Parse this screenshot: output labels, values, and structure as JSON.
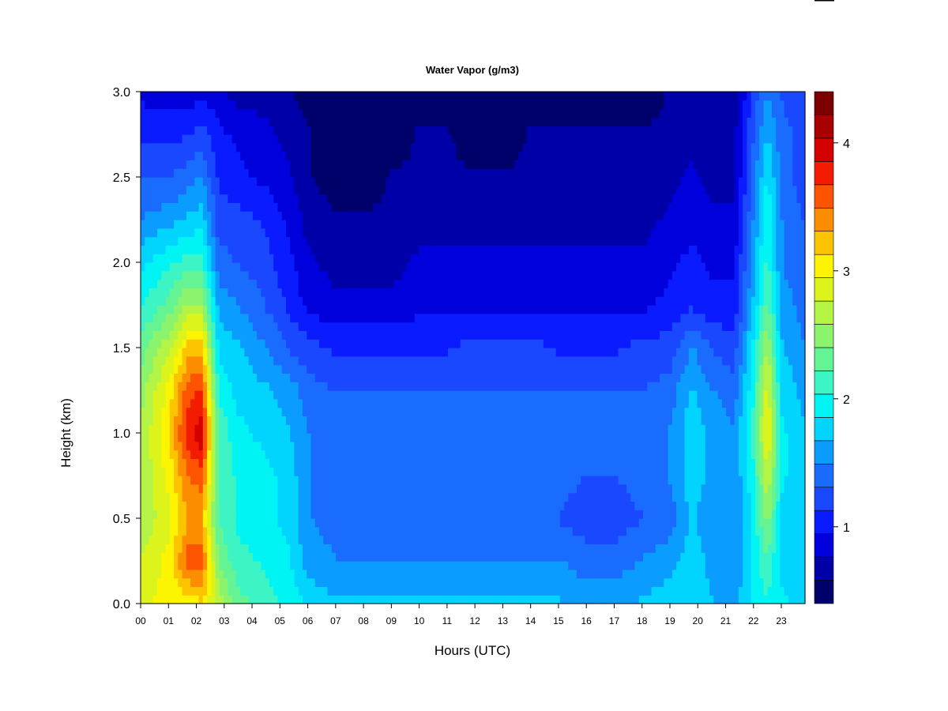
{
  "chart_data": {
    "type": "heatmap",
    "title": "Water Vapor (g/m3)",
    "xlabel": "Hours (UTC)",
    "ylabel": "Height (km)",
    "xlim": [
      0,
      23.85
    ],
    "ylim": [
      0,
      3.0
    ],
    "x_ticks": [
      "00",
      "01",
      "02",
      "03",
      "04",
      "05",
      "06",
      "07",
      "08",
      "09",
      "10",
      "11",
      "12",
      "13",
      "14",
      "15",
      "16",
      "17",
      "18",
      "19",
      "20",
      "21",
      "22",
      "23"
    ],
    "y_ticks": [
      "0.0",
      "0.5",
      "1.0",
      "1.5",
      "2.0",
      "2.5",
      "3.0"
    ],
    "colorbar": {
      "min": 0.4,
      "max": 4.4,
      "levels": 20,
      "ticks": [
        "1",
        "2",
        "3",
        "4"
      ],
      "colors": [
        "#00006a",
        "#0000a8",
        "#0000dc",
        "#0a1cff",
        "#1a48ff",
        "#1a6cff",
        "#0a9cff",
        "#00d4ff",
        "#00f4f4",
        "#3cf4c4",
        "#64f494",
        "#8cf46c",
        "#b4f444",
        "#dcf41c",
        "#fcf400",
        "#fcc400",
        "#fc8c00",
        "#fc5400",
        "#f41c00",
        "#d40000",
        "#a80000",
        "#7c0000"
      ]
    },
    "profile_heights_km": [
      0.0,
      0.25,
      0.5,
      0.75,
      1.0,
      1.25,
      1.5,
      1.75,
      2.0,
      2.25,
      2.5,
      2.75,
      3.0
    ],
    "profiles": [
      {
        "hour": 0.0,
        "values": [
          2.9,
          2.8,
          2.6,
          2.6,
          2.6,
          2.5,
          2.3,
          2.0,
          1.8,
          1.5,
          1.3,
          1.1,
          0.9
        ]
      },
      {
        "hour": 1.0,
        "values": [
          3.0,
          3.0,
          2.9,
          3.0,
          3.1,
          3.0,
          2.7,
          2.3,
          2.0,
          1.6,
          1.3,
          1.1,
          0.8
        ]
      },
      {
        "hour": 1.7,
        "values": [
          3.0,
          3.6,
          3.3,
          3.5,
          3.8,
          3.6,
          3.2,
          2.6,
          2.1,
          1.7,
          1.4,
          1.1,
          0.8
        ]
      },
      {
        "hour": 2.2,
        "values": [
          3.1,
          3.6,
          3.3,
          3.6,
          4.0,
          3.7,
          3.2,
          2.6,
          2.1,
          1.8,
          1.5,
          1.2,
          0.9
        ]
      },
      {
        "hour": 2.8,
        "values": [
          2.7,
          2.4,
          2.2,
          2.2,
          2.2,
          2.0,
          1.8,
          1.6,
          1.4,
          1.2,
          1.1,
          1.0,
          0.8
        ]
      },
      {
        "hour": 3.5,
        "values": [
          2.3,
          2.1,
          2.0,
          2.0,
          1.9,
          1.8,
          1.7,
          1.5,
          1.3,
          1.2,
          1.0,
          0.9,
          0.7
        ]
      },
      {
        "hour": 4.5,
        "values": [
          2.1,
          2.0,
          1.9,
          1.9,
          1.8,
          1.7,
          1.5,
          1.3,
          1.2,
          1.1,
          0.9,
          0.8,
          0.7
        ]
      },
      {
        "hour": 5.3,
        "values": [
          2.0,
          1.9,
          1.8,
          1.8,
          1.7,
          1.6,
          1.3,
          1.1,
          1.0,
          0.9,
          0.8,
          0.7,
          0.6
        ]
      },
      {
        "hour": 6.0,
        "values": [
          1.8,
          1.6,
          1.5,
          1.5,
          1.5,
          1.4,
          1.2,
          0.9,
          0.8,
          0.7,
          0.6,
          0.6,
          0.5
        ]
      },
      {
        "hour": 7.0,
        "values": [
          1.7,
          1.5,
          1.4,
          1.4,
          1.4,
          1.3,
          1.1,
          0.8,
          0.7,
          0.6,
          0.5,
          0.5,
          0.4
        ]
      },
      {
        "hour": 8.0,
        "values": [
          1.7,
          1.5,
          1.3,
          1.4,
          1.4,
          1.3,
          1.1,
          0.8,
          0.7,
          0.6,
          0.5,
          0.5,
          0.4
        ]
      },
      {
        "hour": 9.0,
        "values": [
          1.7,
          1.5,
          1.3,
          1.4,
          1.4,
          1.3,
          1.1,
          0.8,
          0.7,
          0.6,
          0.6,
          0.5,
          0.5
        ]
      },
      {
        "hour": 10.0,
        "values": [
          1.7,
          1.5,
          1.3,
          1.4,
          1.4,
          1.3,
          1.1,
          0.9,
          0.8,
          0.7,
          0.6,
          0.6,
          0.5
        ]
      },
      {
        "hour": 11.0,
        "values": [
          1.7,
          1.5,
          1.3,
          1.4,
          1.4,
          1.3,
          1.1,
          0.9,
          0.8,
          0.7,
          0.6,
          0.6,
          0.5
        ]
      },
      {
        "hour": 12.0,
        "values": [
          1.7,
          1.5,
          1.3,
          1.4,
          1.4,
          1.3,
          1.2,
          0.9,
          0.8,
          0.7,
          0.6,
          0.5,
          0.5
        ]
      },
      {
        "hour": 13.0,
        "values": [
          1.7,
          1.5,
          1.3,
          1.4,
          1.4,
          1.3,
          1.2,
          0.9,
          0.8,
          0.7,
          0.6,
          0.5,
          0.5
        ]
      },
      {
        "hour": 14.0,
        "values": [
          1.7,
          1.5,
          1.3,
          1.4,
          1.4,
          1.3,
          1.2,
          0.9,
          0.8,
          0.7,
          0.6,
          0.6,
          0.5
        ]
      },
      {
        "hour": 15.0,
        "values": [
          1.7,
          1.5,
          1.3,
          1.4,
          1.4,
          1.3,
          1.1,
          0.9,
          0.8,
          0.7,
          0.6,
          0.6,
          0.5
        ]
      },
      {
        "hour": 16.0,
        "values": [
          1.6,
          1.4,
          1.2,
          1.3,
          1.4,
          1.3,
          1.1,
          0.9,
          0.8,
          0.7,
          0.6,
          0.6,
          0.5
        ]
      },
      {
        "hour": 17.0,
        "values": [
          1.6,
          1.4,
          1.2,
          1.3,
          1.4,
          1.3,
          1.1,
          0.9,
          0.8,
          0.7,
          0.6,
          0.6,
          0.5
        ]
      },
      {
        "hour": 18.0,
        "values": [
          1.7,
          1.5,
          1.3,
          1.4,
          1.4,
          1.3,
          1.2,
          0.9,
          0.8,
          0.7,
          0.6,
          0.6,
          0.5
        ]
      },
      {
        "hour": 19.0,
        "values": [
          1.8,
          1.6,
          1.4,
          1.5,
          1.5,
          1.4,
          1.2,
          1.0,
          0.9,
          0.8,
          0.7,
          0.6,
          0.6
        ]
      },
      {
        "hour": 19.8,
        "values": [
          1.8,
          1.8,
          1.7,
          1.8,
          1.8,
          1.7,
          1.5,
          1.1,
          1.0,
          0.9,
          0.8,
          0.7,
          0.6
        ]
      },
      {
        "hour": 20.5,
        "values": [
          1.7,
          1.6,
          1.5,
          1.6,
          1.6,
          1.5,
          1.3,
          1.0,
          0.9,
          0.8,
          0.7,
          0.6,
          0.6
        ]
      },
      {
        "hour": 21.3,
        "values": [
          1.6,
          1.5,
          1.5,
          1.5,
          1.5,
          1.4,
          1.2,
          1.0,
          0.9,
          0.8,
          0.7,
          0.7,
          0.6
        ]
      },
      {
        "hour": 22.0,
        "values": [
          1.9,
          1.9,
          1.9,
          2.0,
          2.1,
          2.0,
          1.9,
          1.7,
          1.6,
          1.5,
          1.4,
          1.3,
          1.2
        ]
      },
      {
        "hour": 22.5,
        "values": [
          2.0,
          2.2,
          2.5,
          2.8,
          3.0,
          2.9,
          2.6,
          2.3,
          2.1,
          2.0,
          1.9,
          1.7,
          1.5
        ]
      },
      {
        "hour": 23.0,
        "values": [
          1.9,
          1.8,
          1.8,
          1.9,
          1.9,
          1.8,
          1.7,
          1.6,
          1.5,
          1.5,
          1.4,
          1.4,
          1.3
        ]
      },
      {
        "hour": 23.85,
        "values": [
          1.8,
          1.7,
          1.7,
          1.7,
          1.7,
          1.6,
          1.5,
          1.4,
          1.3,
          1.3,
          1.2,
          1.2,
          1.1
        ]
      }
    ]
  }
}
